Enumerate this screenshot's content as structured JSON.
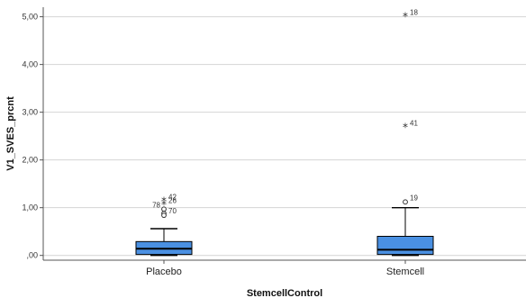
{
  "chart_data": {
    "type": "boxplot",
    "title": "",
    "xlabel": "StemcellControl",
    "ylabel": "V1_SVES_prcnt",
    "ylim": [
      -0.1,
      5.2
    ],
    "yticks": [
      0,
      1,
      2,
      3,
      4,
      5
    ],
    "ytick_labels": [
      ",00",
      "1,00",
      "2,00",
      "3,00",
      "4,00",
      "5,00"
    ],
    "grid": "horizontal",
    "box_color": "#4a90e2",
    "groups": [
      {
        "category": "Placebo",
        "whisker_low": 0.0,
        "q1": 0.02,
        "median": 0.14,
        "q3": 0.29,
        "whisker_high": 0.56,
        "outliers": [
          {
            "value": 1.14,
            "symbol": "*",
            "label": "42"
          },
          {
            "value": 1.06,
            "symbol": "*",
            "label": "26"
          },
          {
            "value": 0.97,
            "symbol": "o",
            "label": "78"
          },
          {
            "value": 0.88,
            "symbol": "o",
            "label": ""
          },
          {
            "value": 0.84,
            "symbol": "o",
            "label": "70"
          }
        ]
      },
      {
        "category": "Stemcell",
        "whisker_low": 0.0,
        "q1": 0.02,
        "median": 0.12,
        "q3": 0.4,
        "whisker_high": 1.0,
        "outliers": [
          {
            "value": 5.0,
            "symbol": "*",
            "label": "18"
          },
          {
            "value": 2.68,
            "symbol": "*",
            "label": "41"
          },
          {
            "value": 1.12,
            "symbol": "o",
            "label": "19"
          }
        ]
      }
    ]
  }
}
